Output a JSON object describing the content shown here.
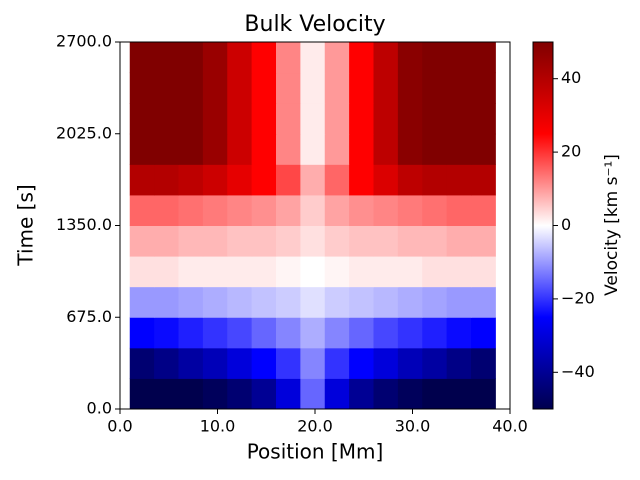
{
  "chart_data": {
    "type": "heatmap",
    "title": "Bulk Velocity",
    "xlabel": "Position [Mm]",
    "ylabel": "Time [s]",
    "colorbar_label": "Velocity [km s⁻¹]",
    "colormap": "seismic",
    "x": [
      1,
      3.5,
      6,
      8.5,
      11,
      13.5,
      16,
      18.5,
      21,
      23.5,
      26,
      28.5,
      31,
      33.5,
      36,
      38.5
    ],
    "y": [
      0,
      225,
      450,
      675,
      900,
      1125,
      1350,
      1575,
      1800,
      2025,
      2250,
      2475,
      2700
    ],
    "z": [
      [
        -50,
        -50,
        -50,
        -48,
        -45,
        -40,
        -30,
        -15,
        -30,
        -40,
        -45,
        -48,
        -50,
        -50,
        -50
      ],
      [
        -45,
        -42,
        -38,
        -35,
        -30,
        -25,
        -20,
        -12,
        -20,
        -25,
        -30,
        -35,
        -38,
        -42,
        -45
      ],
      [
        -25,
        -24,
        -22,
        -20,
        -18,
        -15,
        -12,
        -8,
        -12,
        -15,
        -18,
        -20,
        -22,
        -24,
        -25
      ],
      [
        -10,
        -10,
        -9,
        -8,
        -7,
        -6,
        -5,
        -3,
        -5,
        -6,
        -7,
        -8,
        -9,
        -10,
        -10
      ],
      [
        3,
        3,
        2,
        2,
        2,
        2,
        1,
        0,
        1,
        2,
        2,
        2,
        3,
        3,
        3
      ],
      [
        8,
        8,
        7,
        7,
        6,
        6,
        5,
        3,
        5,
        6,
        6,
        7,
        7,
        8,
        8
      ],
      [
        15,
        15,
        14,
        13,
        12,
        11,
        9,
        5,
        9,
        11,
        12,
        13,
        14,
        15,
        15
      ],
      [
        40,
        40,
        38,
        35,
        30,
        25,
        18,
        8,
        15,
        25,
        32,
        38,
        40,
        40,
        40
      ],
      [
        50,
        50,
        50,
        45,
        35,
        25,
        12,
        2,
        10,
        25,
        38,
        48,
        50,
        50,
        50
      ],
      [
        50,
        50,
        50,
        45,
        35,
        25,
        12,
        2,
        10,
        25,
        38,
        48,
        50,
        50,
        50
      ],
      [
        50,
        50,
        50,
        45,
        35,
        25,
        12,
        2,
        10,
        25,
        38,
        48,
        50,
        50,
        50
      ],
      [
        50,
        50,
        50,
        45,
        35,
        25,
        12,
        2,
        10,
        25,
        38,
        48,
        50,
        50,
        50
      ]
    ],
    "xlim": [
      0,
      40
    ],
    "xticks": [
      {
        "value": 0,
        "label": "0.0"
      },
      {
        "value": 10,
        "label": "10.0"
      },
      {
        "value": 20,
        "label": "20.0"
      },
      {
        "value": 30,
        "label": "30.0"
      },
      {
        "value": 40,
        "label": "40.0"
      }
    ],
    "ylim": [
      0,
      2700
    ],
    "yticks": [
      {
        "value": 0,
        "label": "0.0"
      },
      {
        "value": 675,
        "label": "675.0"
      },
      {
        "value": 1350,
        "label": "1350.0"
      },
      {
        "value": 2025,
        "label": "2025.0"
      },
      {
        "value": 2700,
        "label": "2700.0"
      }
    ],
    "clim": [
      -50,
      50
    ],
    "cticks": [
      {
        "value": -40,
        "label": "−40"
      },
      {
        "value": -20,
        "label": "−20"
      },
      0,
      20,
      40
    ]
  }
}
